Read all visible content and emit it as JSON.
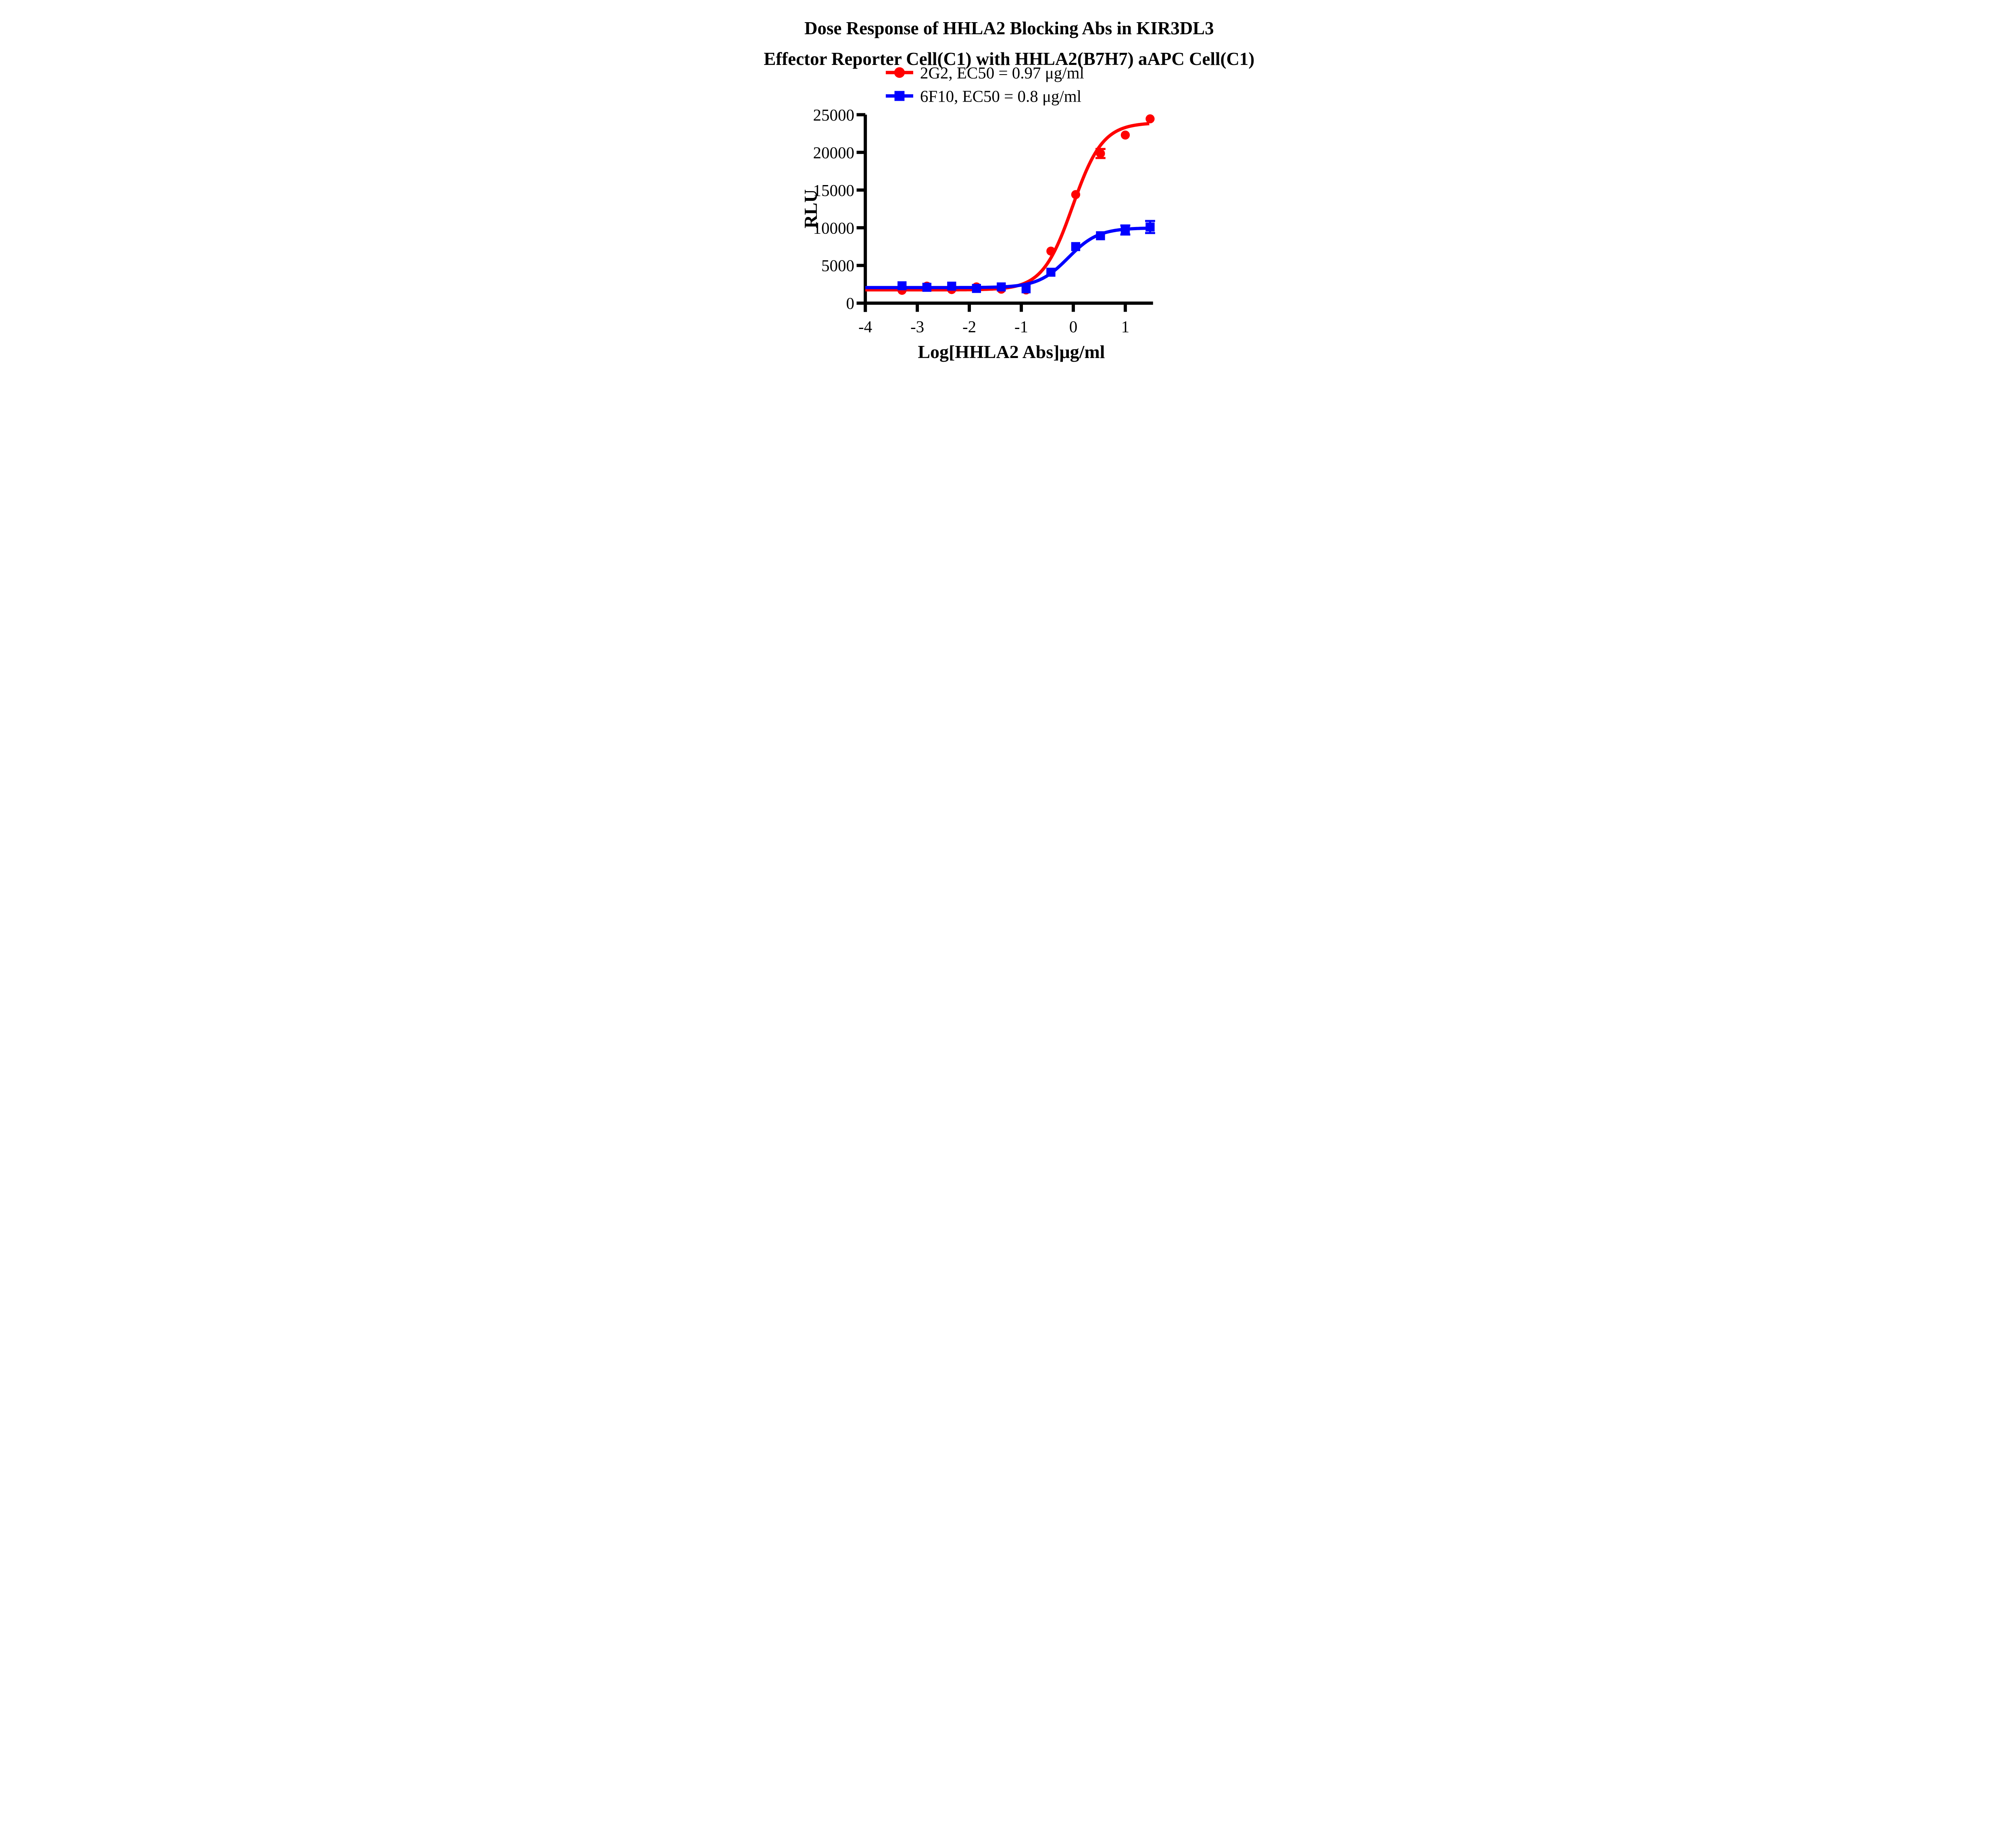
{
  "page": {
    "background": "#ffffff",
    "text_color": "#000000"
  },
  "chart_data": {
    "type": "line",
    "title_lines": [
      "Dose Response of HHLA2 Blocking Abs in KIR3DL3",
      "Effector Reporter Cell(C1) with HHLA2(B7H7) aAPC Cell(C1)"
    ],
    "xlabel": "Log[HHLA2 Abs]μg/ml",
    "ylabel": "RLU",
    "xlim": [
      -4,
      1.55
    ],
    "ylim": [
      0,
      25000
    ],
    "x_ticks": [
      -4,
      -3,
      -2,
      -1,
      0,
      1
    ],
    "x_tick_labels": [
      "-4",
      "-3",
      "-2",
      "-1",
      "0",
      "1"
    ],
    "y_ticks": [
      0,
      5000,
      10000,
      15000,
      20000,
      25000
    ],
    "y_tick_labels": [
      "0",
      "5000",
      "10000",
      "15000",
      "20000",
      "25000"
    ],
    "grid": false,
    "legend_position": "top-center",
    "axis_color": "#000000",
    "series": [
      {
        "name": "2G2",
        "ec50_label": "2G2, EC50 = 0.97 μg/ml",
        "ec50_value_ugml": 0.97,
        "color": "#FF0000",
        "marker": "circle",
        "x": [
          -3.294,
          -2.816,
          -2.339,
          -1.862,
          -1.385,
          -0.908,
          -0.431,
          0.046,
          0.523,
          1.0,
          1.477
        ],
        "y": [
          1700,
          2250,
          1800,
          2150,
          1850,
          1750,
          6900,
          14400,
          19850,
          22300,
          24450
        ],
        "yerr": [
          0,
          0,
          0,
          0,
          0,
          0,
          0,
          0,
          600,
          0,
          0
        ],
        "fit": {
          "model": "4PL-sigmoid",
          "bottom": 1760,
          "top": 23950,
          "logEC50": -0.013,
          "hill": 1.5,
          "draw_range": [
            -4,
            1.474
          ]
        }
      },
      {
        "name": "6F10",
        "ec50_label": "6F10, EC50 = 0.8 μg/ml",
        "ec50_value_ugml": 0.8,
        "color": "#0000FF",
        "marker": "square",
        "x": [
          -3.294,
          -2.816,
          -2.339,
          -1.862,
          -1.385,
          -0.908,
          -0.431,
          0.046,
          0.523,
          1.0,
          1.477
        ],
        "y": [
          2300,
          2100,
          2250,
          1950,
          2150,
          1900,
          4100,
          7500,
          8940,
          9700,
          10100
        ],
        "yerr": [
          0,
          0,
          0,
          0,
          0,
          0,
          0,
          0,
          0,
          600,
          800
        ],
        "fit": {
          "model": "4PL-sigmoid",
          "bottom": 2060,
          "top": 9980,
          "logEC50": -0.097,
          "hill": 1.5,
          "draw_range": [
            -4,
            1.52
          ]
        }
      }
    ]
  }
}
